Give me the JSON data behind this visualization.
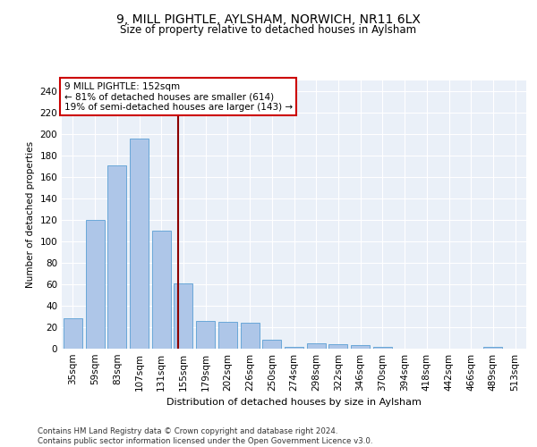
{
  "title": "9, MILL PIGHTLE, AYLSHAM, NORWICH, NR11 6LX",
  "subtitle": "Size of property relative to detached houses in Aylsham",
  "xlabel": "Distribution of detached houses by size in Aylsham",
  "ylabel": "Number of detached properties",
  "categories": [
    "35sqm",
    "59sqm",
    "83sqm",
    "107sqm",
    "131sqm",
    "155sqm",
    "179sqm",
    "202sqm",
    "226sqm",
    "250sqm",
    "274sqm",
    "298sqm",
    "322sqm",
    "346sqm",
    "370sqm",
    "394sqm",
    "418sqm",
    "442sqm",
    "466sqm",
    "489sqm",
    "513sqm"
  ],
  "values": [
    28,
    120,
    171,
    196,
    110,
    61,
    26,
    25,
    24,
    8,
    2,
    5,
    4,
    3,
    2,
    0,
    0,
    0,
    0,
    2,
    0
  ],
  "bar_color": "#aec6e8",
  "bar_edge_color": "#5a9fd4",
  "vline_x": 4.77,
  "vline_color": "#8b0000",
  "annotation_text": "9 MILL PIGHTLE: 152sqm\n← 81% of detached houses are smaller (614)\n19% of semi-detached houses are larger (143) →",
  "annotation_box_color": "#ffffff",
  "annotation_box_edge": "#cc0000",
  "ylim": [
    0,
    250
  ],
  "yticks": [
    0,
    20,
    40,
    60,
    80,
    100,
    120,
    140,
    160,
    180,
    200,
    220,
    240
  ],
  "footer": "Contains HM Land Registry data © Crown copyright and database right 2024.\nContains public sector information licensed under the Open Government Licence v3.0.",
  "plot_bg": "#eaf0f8"
}
